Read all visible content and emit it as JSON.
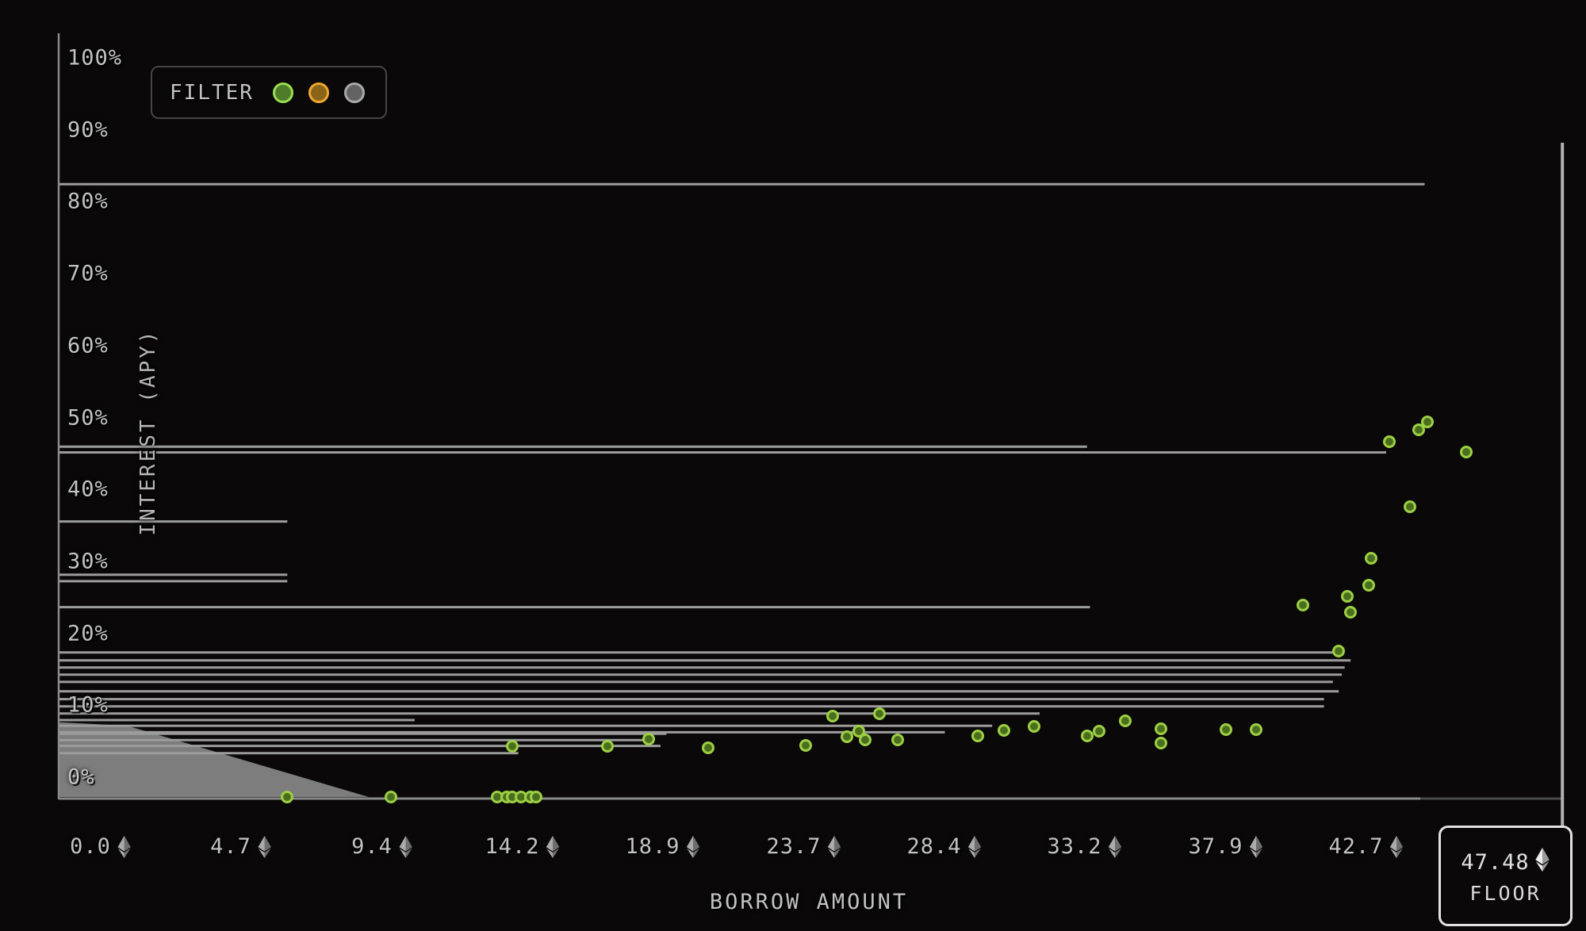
{
  "legend": {
    "label": "FILTER",
    "filters": [
      {
        "name": "green-filter",
        "stroke": "#9ade52",
        "fill": "#4f7c2a"
      },
      {
        "name": "orange-filter",
        "stroke": "#f0a830",
        "fill": "#8a6418"
      },
      {
        "name": "gray-filter",
        "stroke": "#a9a9a9",
        "fill": "#636363"
      }
    ]
  },
  "y_axis": {
    "title": "INTEREST (APY)",
    "ticks": [
      100,
      90,
      80,
      70,
      60,
      50,
      40,
      30,
      20,
      10,
      0
    ],
    "suffix": "%"
  },
  "x_axis": {
    "title": "BORROW AMOUNT",
    "tick_labels": [
      "0.0",
      "4.7",
      "9.4",
      "14.2",
      "18.9",
      "23.7",
      "28.4",
      "33.2",
      "37.9",
      "42.7"
    ],
    "tick_values": [
      0,
      4.748,
      9.496,
      14.244,
      18.992,
      23.74,
      28.488,
      33.236,
      37.984,
      42.732
    ]
  },
  "floor": {
    "value": "47.48",
    "label": "FLOOR"
  },
  "chart_data": {
    "type": "scatter",
    "title": "",
    "xlabel": "BORROW AMOUNT (ETH)",
    "ylabel": "INTEREST (APY)",
    "xlim": [
      0,
      49.3
    ],
    "ylim": [
      0,
      106
    ],
    "grid": false,
    "legend_position": "top-left",
    "floor_eth": 47.48,
    "right_boundary_amount": 49.35,
    "colors": {
      "background": "#0a0808",
      "line": "#9c9c9c",
      "axis": "#8a8a8a",
      "axis_dim": "#4a4a4a",
      "wedge": "#7d7d7d",
      "point_stroke": "#9ccf44",
      "point_fill": "#4a6e1e",
      "text": "#c2c2c2",
      "floor_border": "#e2e2e2"
    },
    "points": [
      {
        "amount": 6.3,
        "apy": 0
      },
      {
        "amount": 9.8,
        "apy": 0
      },
      {
        "amount": 13.4,
        "apy": 0
      },
      {
        "amount": 13.7,
        "apy": 0
      },
      {
        "amount": 13.9,
        "apy": 0
      },
      {
        "amount": 14.2,
        "apy": 0
      },
      {
        "amount": 14.5,
        "apy": 0
      },
      {
        "amount": 14.7,
        "apy": 0
      },
      {
        "amount": 13.9,
        "apy": 7.1
      },
      {
        "amount": 17.1,
        "apy": 7.1
      },
      {
        "amount": 18.5,
        "apy": 8.0
      },
      {
        "amount": 20.5,
        "apy": 6.8
      },
      {
        "amount": 23.8,
        "apy": 7.2
      },
      {
        "amount": 24.7,
        "apy": 11.2
      },
      {
        "amount": 26.3,
        "apy": 11.6
      },
      {
        "amount": 25.2,
        "apy": 8.4
      },
      {
        "amount": 25.6,
        "apy": 9.2
      },
      {
        "amount": 25.8,
        "apy": 7.9
      },
      {
        "amount": 26.9,
        "apy": 7.9
      },
      {
        "amount": 29.6,
        "apy": 8.5
      },
      {
        "amount": 30.5,
        "apy": 9.3
      },
      {
        "amount": 31.5,
        "apy": 9.8
      },
      {
        "amount": 33.3,
        "apy": 8.5
      },
      {
        "amount": 33.7,
        "apy": 9.2
      },
      {
        "amount": 34.6,
        "apy": 10.6
      },
      {
        "amount": 35.8,
        "apy": 9.5
      },
      {
        "amount": 35.8,
        "apy": 7.5
      },
      {
        "amount": 38.0,
        "apy": 9.4
      },
      {
        "amount": 39.0,
        "apy": 9.4
      },
      {
        "amount": 40.6,
        "apy": 26.7
      },
      {
        "amount": 41.8,
        "apy": 20.3
      },
      {
        "amount": 42.1,
        "apy": 27.9
      },
      {
        "amount": 42.2,
        "apy": 25.7
      },
      {
        "amount": 42.8,
        "apy": 29.4
      },
      {
        "amount": 42.9,
        "apy": 33.2
      },
      {
        "amount": 44.2,
        "apy": 40.4
      },
      {
        "amount": 43.5,
        "apy": 49.4
      },
      {
        "amount": 44.5,
        "apy": 51.0
      },
      {
        "amount": 44.8,
        "apy": 52.1
      },
      {
        "amount": 46.1,
        "apy": 48.0
      }
    ],
    "offer_lines": [
      {
        "apy": 85.2,
        "max_amount": 44.7
      },
      {
        "apy": 48.7,
        "max_amount": 33.3
      },
      {
        "apy": 47.9,
        "max_amount": 43.4
      },
      {
        "apy": 38.3,
        "max_amount": 6.3
      },
      {
        "apy": 30.9,
        "max_amount": 6.3
      },
      {
        "apy": 30.0,
        "max_amount": 6.3
      },
      {
        "apy": 26.4,
        "max_amount": 33.4
      },
      {
        "apy": 20.1,
        "max_amount": 41.8
      },
      {
        "apy": 19.0,
        "max_amount": 42.2
      },
      {
        "apy": 18.0,
        "max_amount": 42.0
      },
      {
        "apy": 17.0,
        "max_amount": 41.9
      },
      {
        "apy": 16.0,
        "max_amount": 41.6
      },
      {
        "apy": 14.7,
        "max_amount": 41.8
      },
      {
        "apy": 13.6,
        "max_amount": 41.3
      },
      {
        "apy": 12.6,
        "max_amount": 41.3
      },
      {
        "apy": 11.6,
        "max_amount": 31.7
      },
      {
        "apy": 10.7,
        "max_amount": 10.6
      },
      {
        "apy": 9.9,
        "max_amount": 30.1
      },
      {
        "apy": 9.0,
        "max_amount": 28.5
      },
      {
        "apy": 8.8,
        "max_amount": 19.1
      },
      {
        "apy": 7.9,
        "max_amount": 18.6
      },
      {
        "apy": 7.1,
        "max_amount": 18.9
      },
      {
        "apy": 6.1,
        "max_amount": 14.1
      }
    ],
    "wedge_polygon": [
      {
        "amount": -1.4,
        "apy": 10.4
      },
      {
        "amount": 0.9,
        "apy": 9.9
      },
      {
        "amount": 9.05,
        "apy": 0.0
      },
      {
        "amount": -1.4,
        "apy": 0.0
      }
    ]
  }
}
